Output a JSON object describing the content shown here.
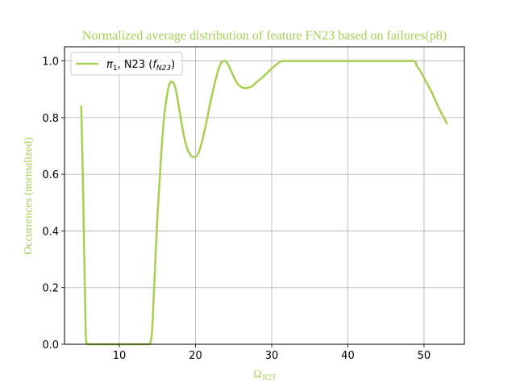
{
  "chart_data": {
    "type": "line",
    "title": "Normalized average distribution of feature FN23 based on failures(p8)",
    "xlabel": "Ω",
    "xlabel_sub": "N23",
    "ylabel": "Occurrences (normalized)",
    "xlim": [
      2.8,
      55.3
    ],
    "ylim": [
      0.0,
      1.05
    ],
    "xticks": [
      10,
      20,
      30,
      40,
      50
    ],
    "yticks": [
      0.0,
      0.2,
      0.4,
      0.6,
      0.8,
      1.0
    ],
    "xtick_labels": [
      "10",
      "20",
      "30",
      "40",
      "50"
    ],
    "ytick_labels": [
      "0.0",
      "0.2",
      "0.4",
      "0.6",
      "0.8",
      "1.0"
    ],
    "grid": true,
    "legend_position": "top-left",
    "colors": {
      "series": "#a6d054",
      "text": "#a6d054"
    },
    "series": [
      {
        "name": "π1, N23 (fN23)",
        "legend": {
          "pi": "π",
          "pi_sub": "1",
          "mid": ", N23 (",
          "f": "f",
          "f_sub": "N23",
          "end": ")"
        },
        "x": [
          5.0,
          5.2,
          5.4,
          5.6,
          5.8,
          6.5,
          8,
          10,
          12,
          13.5,
          14.0,
          14.3,
          14.6,
          15.0,
          15.4,
          15.8,
          16.2,
          16.6,
          17.0,
          17.4,
          17.8,
          18.3,
          18.8,
          19.3,
          19.8,
          20.3,
          20.8,
          21.4,
          22.0,
          22.6,
          23.2,
          23.7,
          24.1,
          24.5,
          25.0,
          25.5,
          26.0,
          26.5,
          27.0,
          27.5,
          28.0,
          28.7,
          29.5,
          30.3,
          31.0,
          31.5,
          32.5,
          35,
          40,
          45,
          48.5,
          49.0,
          49.5,
          50.0,
          50.5,
          51.0,
          51.5,
          52.0,
          52.5,
          53.0
        ],
        "y": [
          0.84,
          0.6,
          0.3,
          0.03,
          0.0,
          0.0,
          0.0,
          0.0,
          0.0,
          0.0,
          0.0,
          0.05,
          0.22,
          0.45,
          0.63,
          0.78,
          0.87,
          0.92,
          0.925,
          0.9,
          0.84,
          0.76,
          0.7,
          0.67,
          0.66,
          0.67,
          0.71,
          0.78,
          0.86,
          0.93,
          0.985,
          1.0,
          0.995,
          0.975,
          0.945,
          0.92,
          0.908,
          0.904,
          0.906,
          0.912,
          0.925,
          0.94,
          0.96,
          0.98,
          0.995,
          1.0,
          1.0,
          1.0,
          1.0,
          1.0,
          1.0,
          0.985,
          0.965,
          0.94,
          0.915,
          0.89,
          0.86,
          0.83,
          0.805,
          0.78
        ]
      }
    ]
  }
}
